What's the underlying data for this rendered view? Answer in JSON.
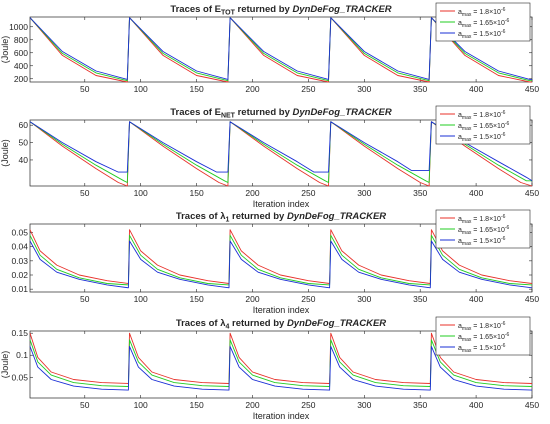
{
  "colors": {
    "red": "#e8312a",
    "green": "#22cc22",
    "blue": "#1a2fd6"
  },
  "chart_data": [
    {
      "type": "line",
      "title_parts": [
        "Traces of E",
        "TOT",
        " returned by ",
        "DynDeFog_TRACKER"
      ],
      "xlabel": "",
      "ylabel": "(Joule)",
      "xlim": [
        1,
        450
      ],
      "ylim": [
        150,
        1150
      ],
      "xticks": [
        50,
        100,
        150,
        200,
        250,
        300,
        350,
        400,
        450
      ],
      "yticks": [
        200,
        400,
        600,
        800,
        1000
      ],
      "legend": [
        "a_max = 1.8×10^-6",
        "a_max = 1.65×10^-6",
        "a_max = 1.5×10^-6"
      ],
      "series": [
        {
          "color": "red",
          "x": [
            1,
            30,
            60,
            88,
            90,
            120,
            150,
            178,
            180,
            210,
            240,
            268,
            270,
            300,
            330,
            358,
            360,
            390,
            420,
            448,
            450
          ],
          "y": [
            1140,
            560,
            250,
            150,
            1140,
            560,
            250,
            150,
            1140,
            560,
            250,
            150,
            1140,
            560,
            250,
            150,
            1140,
            560,
            250,
            150,
            150
          ]
        },
        {
          "color": "green",
          "x": [
            1,
            30,
            60,
            88,
            90,
            120,
            150,
            178,
            180,
            210,
            240,
            268,
            270,
            300,
            330,
            358,
            360,
            390,
            420,
            448,
            450
          ],
          "y": [
            1140,
            590,
            290,
            170,
            1140,
            590,
            290,
            170,
            1140,
            590,
            290,
            170,
            1140,
            590,
            290,
            170,
            1140,
            590,
            290,
            170,
            170
          ]
        },
        {
          "color": "blue",
          "x": [
            1,
            30,
            60,
            88,
            90,
            120,
            150,
            178,
            180,
            210,
            240,
            268,
            270,
            300,
            330,
            358,
            360,
            390,
            420,
            448,
            450
          ],
          "y": [
            1140,
            620,
            320,
            190,
            1140,
            620,
            320,
            190,
            1140,
            620,
            320,
            190,
            1140,
            620,
            320,
            190,
            1140,
            620,
            320,
            190,
            190
          ]
        }
      ]
    },
    {
      "type": "line",
      "title_parts": [
        "Traces of E",
        "NET",
        " returned by ",
        "DynDeFog_TRACKER"
      ],
      "xlabel": "Iteration index",
      "ylabel": "(Joule)",
      "xlim": [
        1,
        450
      ],
      "ylim": [
        25,
        63
      ],
      "xticks": [
        50,
        100,
        150,
        200,
        250,
        300,
        350,
        400,
        450
      ],
      "yticks": [
        40,
        50,
        60
      ],
      "legend": [
        "a_max = 1.8×10^-6",
        "a_max = 1.65×10^-6",
        "a_max = 1.5×10^-6"
      ],
      "series": [
        {
          "color": "red",
          "x": [
            1,
            30,
            60,
            80,
            88,
            90,
            120,
            150,
            170,
            178,
            180,
            210,
            240,
            260,
            268,
            270,
            300,
            330,
            350,
            358,
            360,
            390,
            420,
            440,
            450
          ],
          "y": [
            62,
            48,
            35,
            27,
            25,
            62,
            48,
            35,
            27,
            25,
            62,
            48,
            35,
            27,
            25,
            62,
            48,
            35,
            27,
            25,
            62,
            48,
            35,
            27,
            25
          ]
        },
        {
          "color": "green",
          "x": [
            1,
            30,
            60,
            85,
            88,
            90,
            120,
            150,
            175,
            178,
            180,
            210,
            240,
            265,
            268,
            270,
            300,
            330,
            355,
            358,
            360,
            390,
            420,
            445,
            450
          ],
          "y": [
            62,
            49,
            37,
            28,
            27,
            62,
            49,
            37,
            28,
            27,
            62,
            49,
            37,
            28,
            27,
            62,
            49,
            37,
            28,
            27,
            62,
            49,
            37,
            28,
            28
          ]
        },
        {
          "color": "blue",
          "x": [
            1,
            30,
            60,
            80,
            88,
            90,
            120,
            150,
            168,
            178,
            180,
            210,
            240,
            255,
            268,
            270,
            300,
            330,
            342,
            358,
            360,
            390,
            420,
            445,
            450
          ],
          "y": [
            62,
            50,
            39,
            33,
            33,
            62,
            50,
            39,
            33,
            33,
            62,
            50,
            39,
            33,
            33,
            62,
            50,
            39,
            34,
            34,
            62,
            50,
            39,
            30,
            28
          ]
        }
      ]
    },
    {
      "type": "line",
      "title_parts": [
        "Traces of ",
        "λ",
        "1",
        " returned by ",
        "DynDeFog_TRACKER"
      ],
      "xlabel": "Iteration index",
      "ylabel": "",
      "xlim": [
        1,
        450
      ],
      "ylim": [
        0.008,
        0.056
      ],
      "xticks": [
        50,
        100,
        150,
        200,
        250,
        300,
        350,
        400,
        450
      ],
      "yticks": [
        0.01,
        0.02,
        0.03,
        0.04,
        0.05
      ],
      "yticklabels": [
        "0.01",
        "0.02",
        "0.03",
        "0.04",
        "0.05"
      ],
      "legend": [
        "a_max = 1.8×10^-6",
        "a_max = 1.65×10^-6",
        "a_max = 1.5×10^-6"
      ],
      "series": [
        {
          "color": "red",
          "x": [
            1,
            10,
            25,
            45,
            70,
            89,
            90,
            100,
            115,
            135,
            160,
            179,
            180,
            190,
            205,
            225,
            250,
            269,
            270,
            280,
            295,
            315,
            340,
            359,
            360,
            370,
            385,
            405,
            430,
            450
          ],
          "y": [
            0.052,
            0.037,
            0.027,
            0.02,
            0.016,
            0.014,
            0.052,
            0.037,
            0.027,
            0.02,
            0.016,
            0.014,
            0.052,
            0.037,
            0.027,
            0.02,
            0.016,
            0.014,
            0.052,
            0.037,
            0.027,
            0.02,
            0.016,
            0.014,
            0.052,
            0.037,
            0.027,
            0.02,
            0.016,
            0.014
          ]
        },
        {
          "color": "green",
          "x": [
            1,
            10,
            25,
            45,
            70,
            89,
            90,
            100,
            115,
            135,
            160,
            179,
            180,
            190,
            205,
            225,
            250,
            269,
            270,
            280,
            295,
            315,
            340,
            359,
            360,
            370,
            385,
            405,
            430,
            450
          ],
          "y": [
            0.048,
            0.034,
            0.024,
            0.018,
            0.014,
            0.013,
            0.048,
            0.034,
            0.024,
            0.018,
            0.014,
            0.013,
            0.048,
            0.034,
            0.024,
            0.018,
            0.014,
            0.013,
            0.048,
            0.034,
            0.024,
            0.018,
            0.014,
            0.013,
            0.048,
            0.034,
            0.024,
            0.018,
            0.014,
            0.013
          ]
        },
        {
          "color": "blue",
          "x": [
            1,
            10,
            25,
            45,
            70,
            89,
            90,
            100,
            115,
            135,
            160,
            179,
            180,
            190,
            205,
            225,
            250,
            269,
            270,
            280,
            295,
            315,
            340,
            359,
            360,
            370,
            385,
            405,
            430,
            450
          ],
          "y": [
            0.044,
            0.031,
            0.022,
            0.017,
            0.013,
            0.011,
            0.044,
            0.031,
            0.022,
            0.017,
            0.013,
            0.011,
            0.044,
            0.031,
            0.022,
            0.017,
            0.013,
            0.011,
            0.044,
            0.031,
            0.022,
            0.017,
            0.013,
            0.011,
            0.044,
            0.031,
            0.022,
            0.017,
            0.013,
            0.011
          ]
        }
      ]
    },
    {
      "type": "line",
      "title_parts": [
        "Traces of ",
        "λ",
        "4",
        " returned by ",
        "DynDeFog_TRACKER"
      ],
      "xlabel": "Iteration index",
      "ylabel": "(Joule)",
      "xlim": [
        1,
        450
      ],
      "ylim": [
        0.003,
        0.155
      ],
      "xticks": [
        50,
        100,
        150,
        200,
        250,
        300,
        350,
        400,
        450
      ],
      "yticks": [
        0.05,
        0.1,
        0.15
      ],
      "yticklabels": [
        "0.05",
        "0.1",
        "0.15"
      ],
      "legend": [
        "a_max = 1.8×10^-6",
        "a_max = 1.65×10^-6",
        "a_max = 1.5×10^-6"
      ],
      "series": [
        {
          "color": "red",
          "x": [
            1,
            8,
            20,
            40,
            65,
            89,
            90,
            98,
            110,
            130,
            155,
            179,
            180,
            188,
            200,
            220,
            245,
            269,
            270,
            278,
            290,
            310,
            335,
            359,
            360,
            368,
            380,
            400,
            425,
            450
          ],
          "y": [
            0.15,
            0.095,
            0.062,
            0.045,
            0.038,
            0.036,
            0.15,
            0.095,
            0.062,
            0.045,
            0.038,
            0.036,
            0.15,
            0.095,
            0.062,
            0.045,
            0.038,
            0.036,
            0.15,
            0.095,
            0.062,
            0.045,
            0.038,
            0.036,
            0.15,
            0.095,
            0.062,
            0.045,
            0.038,
            0.036
          ]
        },
        {
          "color": "green",
          "x": [
            1,
            8,
            20,
            40,
            65,
            89,
            90,
            98,
            110,
            130,
            155,
            179,
            180,
            188,
            200,
            220,
            245,
            269,
            270,
            278,
            290,
            310,
            335,
            359,
            360,
            368,
            380,
            400,
            425,
            450
          ],
          "y": [
            0.135,
            0.085,
            0.055,
            0.038,
            0.031,
            0.029,
            0.135,
            0.085,
            0.055,
            0.038,
            0.031,
            0.029,
            0.135,
            0.085,
            0.055,
            0.038,
            0.031,
            0.029,
            0.135,
            0.085,
            0.055,
            0.038,
            0.031,
            0.029,
            0.135,
            0.085,
            0.055,
            0.038,
            0.031,
            0.029
          ]
        },
        {
          "color": "blue",
          "x": [
            1,
            8,
            20,
            40,
            65,
            89,
            90,
            98,
            110,
            130,
            155,
            179,
            180,
            188,
            200,
            220,
            245,
            269,
            270,
            278,
            290,
            310,
            335,
            359,
            360,
            368,
            380,
            400,
            425,
            450
          ],
          "y": [
            0.12,
            0.073,
            0.045,
            0.03,
            0.023,
            0.021,
            0.12,
            0.073,
            0.045,
            0.03,
            0.023,
            0.021,
            0.12,
            0.073,
            0.045,
            0.03,
            0.023,
            0.021,
            0.12,
            0.073,
            0.045,
            0.03,
            0.023,
            0.021,
            0.12,
            0.073,
            0.045,
            0.03,
            0.023,
            0.021
          ]
        }
      ]
    }
  ]
}
